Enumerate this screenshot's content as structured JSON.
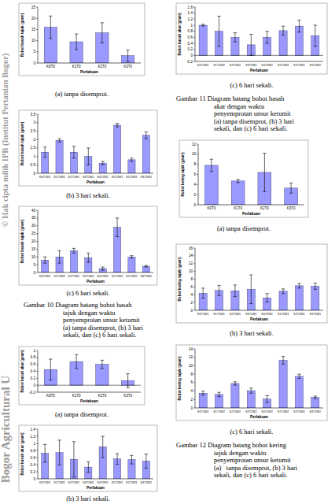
{
  "chart_data": [
    {
      "type": "bar",
      "title": "(a) tanpa disemprot.",
      "y_label": "Bobot basah tajuk (gram)",
      "x_label": "Perlakuan",
      "color": "#9999ff",
      "categories": [
        "K0T0",
        "K1T0",
        "K2T0",
        "K3T0"
      ],
      "values": [
        16,
        9.5,
        13.5,
        3.3
      ],
      "errors": [
        5,
        3.5,
        4.5,
        2.5
      ],
      "ylim": [
        0,
        25
      ],
      "yticks": [
        0,
        5,
        10,
        15,
        20,
        25
      ]
    },
    {
      "type": "bar",
      "title": "(b) 3 hari sekali.",
      "y_label": "Bobot basah tajuk (gram)",
      "x_label": "Perlakuan",
      "color": "#9999ff",
      "categories": [
        "K0T1W1",
        "K1T1W1",
        "K2T1W1",
        "K3T1W1",
        "K0T2W1",
        "K1T2W1",
        "K2T2W1",
        "K3T2W1"
      ],
      "values": [
        1.25,
        1.95,
        1.25,
        1.0,
        0.6,
        2.85,
        0.8,
        2.25
      ],
      "errors": [
        0.3,
        0.1,
        0.35,
        0.5,
        0.1,
        0.1,
        0.1,
        0.2
      ],
      "ylim": [
        0,
        3.5
      ],
      "yticks": [
        0,
        0.5,
        1,
        1.5,
        2,
        2.5,
        3,
        3.5
      ]
    },
    {
      "type": "bar",
      "title": "(c) 6 hari sekali.",
      "y_label": "Bobot basah tajuk (gram)",
      "x_label": "Perlakuan",
      "color": "#9999ff",
      "categories": [
        "K0T1W2",
        "K1T1W2",
        "K2T1W2",
        "K3T1W2",
        "K0T2W2",
        "K1T2W2",
        "K2T2W2",
        "K3T2W2"
      ],
      "values": [
        8,
        10,
        14,
        9.5,
        2.5,
        29,
        10,
        4
      ],
      "errors": [
        2,
        4,
        1.5,
        3,
        1,
        6,
        0.8,
        0.5
      ],
      "ylim": [
        0,
        40
      ],
      "yticks": [
        0,
        5,
        10,
        15,
        20,
        25,
        30,
        35,
        40
      ]
    },
    {
      "type": "bar",
      "title": "(a) tanpa disemprot.",
      "y_label": "Bobot basah akar (gram)",
      "x_label": "Perlakuan",
      "color": "#9999ff",
      "categories": [
        "K0T0",
        "K1T0",
        "K2T0",
        "K3T0"
      ],
      "values": [
        0.45,
        0.68,
        0.6,
        0.13
      ],
      "errors": [
        0.3,
        0.2,
        0.12,
        0.2
      ],
      "ylim": [
        -0.2,
        1
      ],
      "yticks": [
        -0.2,
        0,
        0.2,
        0.4,
        0.6,
        0.8,
        1
      ]
    },
    {
      "type": "bar",
      "title": "(b) 3 hari sekali.",
      "y_label": "Bobot basah akar (gram)",
      "x_label": "Perlakuan",
      "color": "#9999ff",
      "categories": [
        "K0T1W1",
        "K1T1W1",
        "K2T1W1",
        "K3T1W1",
        "K0T2W1",
        "K1T2W1",
        "K2T2W1",
        "K3T2W1"
      ],
      "values": [
        0.72,
        0.74,
        0.55,
        0.33,
        0.9,
        0.56,
        0.54,
        0.5
      ],
      "errors": [
        0.25,
        0.35,
        0.5,
        0.15,
        0.3,
        0.15,
        0.12,
        0.2
      ],
      "ylim": [
        0,
        1.4
      ],
      "yticks": [
        0,
        0.2,
        0.4,
        0.6,
        0.8,
        1,
        1.2,
        1.4
      ]
    },
    {
      "type": "bar",
      "title": "(c) 6 hari sekali.",
      "y_label": "Bobot basah akar (gram)",
      "x_label": "Perlakuan",
      "color": "#9999ff",
      "categories": [
        "K0T1W2",
        "K1T1W2",
        "K2T1W2",
        "K3T1W2",
        "K0T2W2",
        "K1T2W2",
        "K2T2W2",
        "K3T2W2"
      ],
      "values": [
        1.0,
        0.8,
        0.6,
        0.35,
        0.6,
        0.82,
        0.97,
        0.65
      ],
      "errors": [
        0.03,
        0.5,
        0.15,
        0.35,
        0.2,
        0.15,
        0.2,
        0.35
      ],
      "ylim": [
        -0.2,
        1.6
      ],
      "yticks": [
        -0.2,
        0,
        0.2,
        0.4,
        0.6,
        0.8,
        1,
        1.2,
        1.4,
        1.6
      ]
    },
    {
      "type": "bar",
      "title": "(a) tanpa disemprot.",
      "y_label": "Bobot kering tajuk (gram)",
      "x_label": "Perlakuan",
      "color": "#9999ff",
      "categories": [
        "K0T0",
        "K1T0",
        "K2T0",
        "K3T0"
      ],
      "values": [
        7.8,
        4.7,
        6.4,
        3.3
      ],
      "errors": [
        1.2,
        0.3,
        3.8,
        1.0
      ],
      "ylim": [
        0,
        12
      ],
      "yticks": [
        0,
        2,
        4,
        6,
        8,
        10,
        12
      ]
    },
    {
      "type": "bar",
      "title": "(b) 3 hari sekali.",
      "y_label": "Bobot kering tajuk (gram)",
      "x_label": "Perlakuan",
      "color": "#9999ff",
      "categories": [
        "K0T1W1",
        "K1T1W1",
        "K2T1W1",
        "K3T1W1",
        "K0T2W1",
        "K1T2W1",
        "K2T2W1",
        "K3T2W1"
      ],
      "values": [
        4.4,
        5.1,
        5,
        5.4,
        3.2,
        4.9,
        6.3,
        6.2
      ],
      "errors": [
        1.3,
        1.3,
        1.5,
        3.7,
        1.1,
        0.6,
        0.6,
        0.8
      ],
      "ylim": [
        0,
        16
      ],
      "yticks": [
        0,
        2,
        4,
        6,
        8,
        10,
        12,
        14,
        16
      ]
    },
    {
      "type": "bar",
      "title": "(c) 6 hari sekali.",
      "y_label": "Bobot kering tajuk (gram)",
      "x_label": "Perlakuan",
      "color": "#9999ff",
      "categories": [
        "K0T1W2",
        "K1T1W2",
        "K2T1W2",
        "K3T1W2",
        "K0T2W2",
        "K1T2W2",
        "K2T2W2",
        "K3T2W2"
      ],
      "values": [
        3.5,
        3.2,
        5.8,
        4.1,
        2.1,
        11.3,
        7.5,
        2.5
      ],
      "errors": [
        0.5,
        0.5,
        0.4,
        0.6,
        0.8,
        0.9,
        0.5,
        0.3
      ],
      "ylim": [
        0,
        14
      ],
      "yticks": [
        0,
        2,
        4,
        6,
        8,
        10,
        12,
        14
      ]
    }
  ],
  "captions": [
    {
      "lines": [
        "Gambar 10 Diagram batang bobot basah",
        "tajuk dengan waktu",
        "penyemprotan unsur ketumit",
        "(a) tanpa disemprot, (b) 3 hari",
        "sekali, dan (c) 6 hari sekali."
      ]
    },
    {
      "lines": [
        "Gambar 11 Diagram batang bobot basah",
        "akar dengan waktu",
        "penyemprotan unsur ketumit",
        "(a) tanpa disemprot, (b) 3 hari",
        "sekali, dan (c) 6 hari sekali."
      ]
    },
    {
      "lines": [
        "Gambar 12 Diagram batang bobot kering",
        "tajuk dengan waktu",
        "penyemprotan unsur ketumit",
        "(a)   tanpa disemprot, (b) 3 hari",
        "sekali, dan (c) 6 hari sekali."
      ]
    }
  ],
  "watermark": [
    "© Hak cipta milik IPB (Institut Pertanian Bogor)",
    "Bogor Agricultural U"
  ]
}
